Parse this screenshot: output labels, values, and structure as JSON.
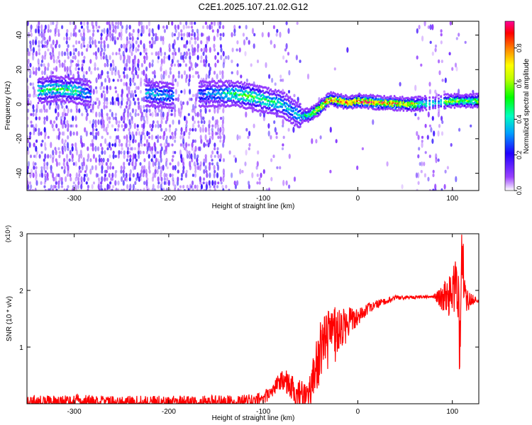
{
  "figure_title": "C2E1.2025.107.21.02.G12",
  "colors": {
    "snr_line": "#ff0000",
    "axes": "#000000"
  },
  "colormap": [
    "#ffffff",
    "#7a00ff",
    "#0000ff",
    "#00ffff",
    "#00ff00",
    "#ffff00",
    "#ff8000",
    "#ff0000",
    "#ff00aa"
  ],
  "chart_data": [
    {
      "type": "heatmap",
      "title": "C2E1.2025.107.21.02.G12",
      "xlabel": "Height of straight line (km)",
      "ylabel": "Frequency (Hz)",
      "xlim": [
        -350,
        128
      ],
      "ylim": [
        -50,
        48
      ],
      "x_ticks": [
        -300,
        -200,
        -100,
        0,
        100
      ],
      "y_ticks": [
        -40,
        -20,
        0,
        20,
        40
      ],
      "colorbar": {
        "label": "Normalized spectral amplitude",
        "range": [
          0,
          0.95
        ],
        "ticks": [
          0.0,
          0.2,
          0.4,
          0.6,
          0.8
        ]
      },
      "ridge": {
        "description_points": [
          [
            -335,
            8
          ],
          [
            -320,
            9
          ],
          [
            -300,
            8
          ],
          [
            -285,
            6
          ],
          [
            -220,
            6
          ],
          [
            -200,
            5
          ],
          [
            -160,
            6
          ],
          [
            -140,
            6
          ],
          [
            -130,
            6
          ],
          [
            -110,
            4
          ],
          [
            -95,
            2
          ],
          [
            -80,
            0
          ],
          [
            -70,
            -4
          ],
          [
            -60,
            -7
          ],
          [
            -50,
            -6
          ],
          [
            -40,
            -2
          ],
          [
            -30,
            3
          ],
          [
            -20,
            2
          ],
          [
            -10,
            1
          ],
          [
            0,
            2
          ],
          [
            20,
            1
          ],
          [
            60,
            0
          ],
          [
            80,
            1
          ],
          [
            100,
            2
          ],
          [
            128,
            2
          ]
        ],
        "amplitude": [
          [
            -335,
            0.45
          ],
          [
            -300,
            0.5
          ],
          [
            -285,
            0.3
          ],
          [
            -220,
            0.35
          ],
          [
            -160,
            0.3
          ],
          [
            -130,
            0.45
          ],
          [
            -110,
            0.55
          ],
          [
            -95,
            0.45
          ],
          [
            -80,
            0.4
          ],
          [
            -65,
            0.35
          ],
          [
            -50,
            0.5
          ],
          [
            -35,
            0.75
          ],
          [
            -20,
            0.85
          ],
          [
            -10,
            0.85
          ],
          [
            0,
            0.8
          ],
          [
            20,
            0.9
          ],
          [
            60,
            0.7
          ],
          [
            65,
            0.5
          ],
          [
            75,
            0.45
          ],
          [
            85,
            0.35
          ],
          [
            95,
            0.6
          ],
          [
            110,
            0.55
          ],
          [
            128,
            0.6
          ]
        ]
      }
    },
    {
      "type": "line",
      "xlabel": "Height of straight line (km)",
      "ylabel": "SNR (10 * v/v)",
      "y_multiplier": "(x10⁴)",
      "xlim": [
        -350,
        128
      ],
      "ylim": [
        0,
        3
      ],
      "x_ticks": [
        -300,
        -200,
        -100,
        0,
        100
      ],
      "y_ticks": [
        1,
        2,
        3
      ],
      "series": [
        {
          "color": "#ff0000",
          "x": [
            -350,
            -300,
            -250,
            -200,
            -150,
            -120,
            -100,
            -90,
            -80,
            -70,
            -60,
            -50,
            -45,
            -40,
            -30,
            -20,
            -10,
            0,
            10,
            20,
            30,
            40,
            60,
            80,
            90,
            100,
            105,
            108,
            110,
            115,
            128
          ],
          "y": [
            0.02,
            0.04,
            0.02,
            0.02,
            0.03,
            0.04,
            0.08,
            0.25,
            0.45,
            0.3,
            0.12,
            0.15,
            0.6,
            0.9,
            1.1,
            1.3,
            1.45,
            1.55,
            1.65,
            1.75,
            1.82,
            1.87,
            1.88,
            1.89,
            1.88,
            1.9,
            2.2,
            1.0,
            2.8,
            1.82,
            1.82
          ],
          "noise_band": [
            [
              -90,
              0.12
            ],
            [
              -50,
              0.35
            ],
            [
              -40,
              0.6
            ],
            [
              -30,
              0.55
            ],
            [
              -20,
              0.45
            ],
            [
              -10,
              0.3
            ],
            [
              0,
              0.15
            ],
            [
              20,
              0.08
            ],
            [
              40,
              0.04
            ],
            [
              80,
              0.02
            ],
            [
              90,
              0.25
            ],
            [
              100,
              0.4
            ],
            [
              110,
              0.8
            ],
            [
              115,
              0.2
            ],
            [
              128,
              0.02
            ]
          ]
        }
      ]
    }
  ]
}
